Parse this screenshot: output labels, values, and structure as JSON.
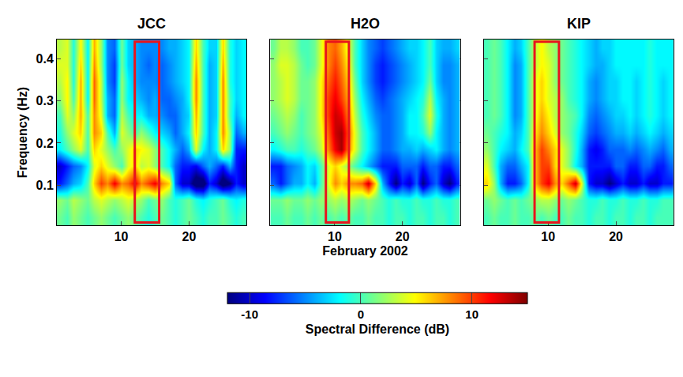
{
  "chart_data": {
    "type": "heatmap",
    "xlabel": "February 2002",
    "ylabel": "Frequency (Hz)",
    "x": [
      1,
      2,
      3,
      4,
      5,
      6,
      7,
      8,
      9,
      10,
      11,
      12,
      13,
      14,
      15,
      16,
      17,
      18,
      19,
      20,
      21,
      22,
      23,
      24,
      25,
      26,
      27,
      28
    ],
    "y": [
      0.025,
      0.065,
      0.105,
      0.145,
      0.185,
      0.225,
      0.265,
      0.305,
      0.345,
      0.385,
      0.425
    ],
    "xlim": [
      0.5,
      28.5
    ],
    "xticks": [
      10,
      20
    ],
    "ylim": [
      0.005,
      0.445
    ],
    "yticks": [
      0.1,
      0.2,
      0.3,
      0.4
    ],
    "grid": true,
    "tick_labels": "y",
    "colorbar": {
      "title": "Spectral Difference (dB)",
      "range": [
        -12,
        15
      ],
      "ticks": [
        -10,
        0,
        10
      ]
    },
    "panels": [
      {
        "title": "JCC",
        "highlight": {
          "x": [
            12,
            15.6
          ],
          "y": [
            0.012,
            0.44
          ],
          "color": "#e8141c"
        },
        "z": [
          [
            1,
            0,
            2,
            1,
            0,
            1,
            2,
            1,
            0,
            1,
            2,
            1,
            0,
            -1,
            0,
            1,
            0,
            -1,
            0,
            1,
            0,
            -1,
            0,
            0,
            1,
            0,
            -1,
            0
          ],
          [
            2,
            1,
            3,
            2,
            1,
            3,
            4,
            3,
            2,
            3,
            4,
            3,
            2,
            0,
            1,
            2,
            0,
            -1,
            0,
            1,
            -1,
            -2,
            -1,
            0,
            1,
            -1,
            -2,
            -1
          ],
          [
            -8,
            -6,
            -4,
            -3,
            0,
            6,
            10,
            8,
            12,
            8,
            9,
            12,
            8,
            10,
            12,
            8,
            6,
            -6,
            -10,
            -10,
            -14,
            -14,
            -8,
            -10,
            -14,
            -12,
            -8,
            -10
          ],
          [
            -10,
            -8,
            -6,
            -5,
            -2,
            4,
            6,
            4,
            2,
            0,
            4,
            6,
            3,
            4,
            2,
            0,
            -2,
            -6,
            -8,
            -8,
            -9,
            -6,
            -4,
            -6,
            -8,
            -4,
            -8,
            -10
          ],
          [
            -2,
            0,
            2,
            4,
            0,
            6,
            4,
            2,
            0,
            2,
            4,
            6,
            5,
            4,
            2,
            0,
            -2,
            -4,
            -6,
            -4,
            4,
            -2,
            -4,
            -2,
            6,
            2,
            -8,
            -8
          ],
          [
            -1,
            2,
            4,
            6,
            0,
            8,
            6,
            0,
            -4,
            4,
            2,
            0,
            2,
            0,
            -2,
            -3,
            -4,
            -6,
            -4,
            -2,
            6,
            0,
            -4,
            -2,
            8,
            2,
            -6,
            -4
          ],
          [
            0,
            4,
            2,
            7,
            0,
            8,
            4,
            -4,
            -6,
            3,
            0,
            -2,
            -2,
            -4,
            -4,
            -5,
            -6,
            -6,
            -4,
            -3,
            7,
            0,
            -4,
            -3,
            8,
            0,
            -4,
            -2
          ],
          [
            2,
            5,
            0,
            7,
            -2,
            9,
            3,
            -4,
            -6,
            2,
            -2,
            -3,
            -4,
            -5,
            -4,
            -6,
            -6,
            -5,
            -4,
            -2,
            8,
            0,
            -4,
            -3,
            8,
            0,
            -3,
            -2
          ],
          [
            3,
            5,
            -1,
            7,
            -2,
            9,
            3,
            -5,
            -7,
            2,
            -2,
            -4,
            -5,
            -5,
            -5,
            -6,
            -5,
            -4,
            -3,
            -2,
            8,
            0,
            -4,
            -3,
            8,
            -1,
            -3,
            -2
          ],
          [
            4,
            4,
            -1,
            6,
            -2,
            8,
            2,
            -5,
            -7,
            1,
            -3,
            -4,
            -5,
            -6,
            -5,
            -6,
            -5,
            -4,
            -3,
            -2,
            7,
            0,
            -4,
            -3,
            7,
            -1,
            -3,
            -2
          ],
          [
            3,
            4,
            -1,
            5,
            -2,
            7,
            2,
            -5,
            -6,
            1,
            -3,
            -4,
            -5,
            -5,
            -5,
            -5,
            -4,
            -4,
            -3,
            -2,
            6,
            0,
            -3,
            -3,
            6,
            -1,
            -3,
            -2
          ]
        ]
      },
      {
        "title": "H2O",
        "highlight": {
          "x": [
            8.7,
            12.1
          ],
          "y": [
            0.012,
            0.44
          ],
          "color": "#e8141c"
        },
        "z": [
          [
            0,
            0,
            1,
            0,
            0,
            1,
            0,
            1,
            0,
            1,
            0,
            1,
            0,
            0,
            1,
            0,
            0,
            -1,
            0,
            0,
            -1,
            0,
            0,
            -1,
            0,
            0,
            -1,
            0
          ],
          [
            1,
            1,
            2,
            1,
            1,
            2,
            1,
            2,
            2,
            3,
            2,
            3,
            2,
            1,
            2,
            1,
            0,
            -1,
            0,
            -1,
            -1,
            0,
            -1,
            -1,
            0,
            -1,
            -1,
            0
          ],
          [
            -6,
            -8,
            -6,
            -4,
            -4,
            -2,
            -4,
            0,
            4,
            8,
            6,
            8,
            8,
            9,
            13,
            6,
            -4,
            -8,
            -12,
            -8,
            -10,
            -6,
            -12,
            -8,
            -6,
            -10,
            -12,
            -8
          ],
          [
            -8,
            -8,
            -6,
            -5,
            -4,
            -2,
            -3,
            0,
            4,
            6,
            4,
            2,
            0,
            -2,
            -4,
            -6,
            -8,
            -8,
            -8,
            -6,
            -6,
            -6,
            -8,
            -6,
            -6,
            -8,
            -8,
            -6
          ],
          [
            -2,
            -1,
            0,
            0,
            -1,
            0,
            1,
            3,
            8,
            12,
            14,
            8,
            4,
            0,
            -2,
            -4,
            -6,
            -6,
            -5,
            -4,
            -4,
            -3,
            -4,
            -3,
            -2,
            -4,
            -5,
            -4
          ],
          [
            0,
            1,
            2,
            1,
            0,
            1,
            2,
            4,
            9,
            13,
            14,
            9,
            4,
            0,
            -2,
            -4,
            -6,
            -6,
            -5,
            -4,
            -2,
            -2,
            -1,
            2,
            -2,
            -4,
            -5,
            -4
          ],
          [
            1,
            2,
            3,
            2,
            0,
            1,
            2,
            5,
            10,
            13,
            12,
            8,
            3,
            -1,
            -3,
            -5,
            -6,
            -6,
            -5,
            -4,
            -2,
            -2,
            0,
            4,
            -1,
            -4,
            -5,
            -4
          ],
          [
            2,
            3,
            4,
            3,
            1,
            1,
            2,
            5,
            10,
            12,
            10,
            7,
            2,
            -2,
            -4,
            -6,
            -7,
            -6,
            -5,
            -4,
            -3,
            -2,
            -1,
            3,
            -2,
            -4,
            -5,
            -4
          ],
          [
            2,
            3,
            4,
            3,
            1,
            1,
            2,
            5,
            9,
            11,
            9,
            6,
            1,
            -3,
            -5,
            -7,
            -8,
            -7,
            -6,
            -5,
            -4,
            -3,
            -2,
            1,
            -3,
            -5,
            -5,
            -4
          ],
          [
            2,
            4,
            4,
            3,
            1,
            0,
            1,
            4,
            8,
            10,
            8,
            5,
            0,
            -3,
            -5,
            -7,
            -8,
            -7,
            -6,
            -5,
            -4,
            -3,
            -2,
            0,
            -3,
            -5,
            -5,
            -4
          ],
          [
            1,
            3,
            3,
            2,
            0,
            0,
            1,
            4,
            8,
            9,
            7,
            4,
            0,
            -3,
            -5,
            -6,
            -7,
            -6,
            -5,
            -4,
            -3,
            -3,
            -2,
            0,
            -3,
            -4,
            -4,
            -3
          ]
        ]
      },
      {
        "title": "KIP",
        "highlight": {
          "x": [
            8,
            11.6
          ],
          "y": [
            0.012,
            0.44
          ],
          "color": "#e8141c"
        },
        "z": [
          [
            0,
            1,
            0,
            0,
            1,
            0,
            0,
            1,
            0,
            1,
            0,
            0,
            1,
            0,
            0,
            -1,
            0,
            0,
            -1,
            0,
            0,
            -1,
            0,
            0,
            -1,
            0,
            0,
            0
          ],
          [
            1,
            2,
            1,
            0,
            1,
            0,
            1,
            2,
            3,
            3,
            2,
            1,
            2,
            1,
            0,
            -1,
            -1,
            0,
            -1,
            -1,
            0,
            -1,
            -1,
            0,
            -1,
            -1,
            0,
            0
          ],
          [
            6,
            2,
            -4,
            -8,
            -8,
            -6,
            -2,
            6,
            10,
            12,
            8,
            6,
            9,
            13,
            4,
            -8,
            -10,
            -10,
            -12,
            -10,
            -8,
            -10,
            -10,
            -8,
            -10,
            -10,
            -8,
            -8
          ],
          [
            4,
            0,
            -4,
            -6,
            -6,
            -4,
            -2,
            6,
            10,
            10,
            6,
            4,
            2,
            -2,
            -4,
            -8,
            -8,
            -8,
            -8,
            -6,
            -6,
            -8,
            -8,
            -6,
            -6,
            -8,
            -8,
            -6
          ],
          [
            2,
            0,
            -2,
            -3,
            -4,
            -2,
            0,
            6,
            10,
            8,
            6,
            4,
            2,
            -1,
            -4,
            -8,
            -9,
            -8,
            -6,
            -6,
            -6,
            -5,
            -6,
            -5,
            -4,
            -5,
            -6,
            -4
          ],
          [
            1,
            0,
            -1,
            -2,
            -4,
            -3,
            0,
            5,
            8,
            6,
            4,
            2,
            1,
            -1,
            -3,
            -6,
            -7,
            -6,
            -5,
            -4,
            -4,
            -3,
            -4,
            -3,
            -2,
            -3,
            -4,
            -3
          ],
          [
            0,
            1,
            0,
            -2,
            -5,
            -4,
            0,
            4,
            7,
            5,
            3,
            2,
            1,
            0,
            -2,
            -5,
            -6,
            -5,
            -4,
            -3,
            -3,
            -2,
            -3,
            -2,
            -1,
            -2,
            -3,
            -2
          ],
          [
            0,
            1,
            0,
            -2,
            -5,
            -4,
            0,
            4,
            6,
            4,
            3,
            2,
            0,
            -1,
            -2,
            -4,
            -5,
            -4,
            -3,
            -3,
            -2,
            -2,
            -3,
            -2,
            -1,
            -2,
            -3,
            -2
          ],
          [
            0,
            1,
            0,
            -2,
            -5,
            -4,
            0,
            4,
            6,
            4,
            2,
            1,
            0,
            -1,
            -2,
            -4,
            -5,
            -4,
            -3,
            -3,
            -2,
            -2,
            -3,
            -2,
            -1,
            -2,
            -3,
            -2
          ],
          [
            0,
            1,
            0,
            -2,
            -5,
            -4,
            0,
            3,
            5,
            4,
            2,
            1,
            0,
            -1,
            -2,
            -3,
            -4,
            -4,
            -3,
            -2,
            -2,
            -2,
            -2,
            -2,
            -1,
            -2,
            -2,
            -2
          ],
          [
            0,
            1,
            0,
            -2,
            -4,
            -3,
            0,
            3,
            5,
            3,
            2,
            1,
            0,
            -1,
            -2,
            -3,
            -4,
            -3,
            -3,
            -2,
            -2,
            -2,
            -2,
            -2,
            -1,
            -2,
            -2,
            -2
          ]
        ]
      }
    ]
  }
}
